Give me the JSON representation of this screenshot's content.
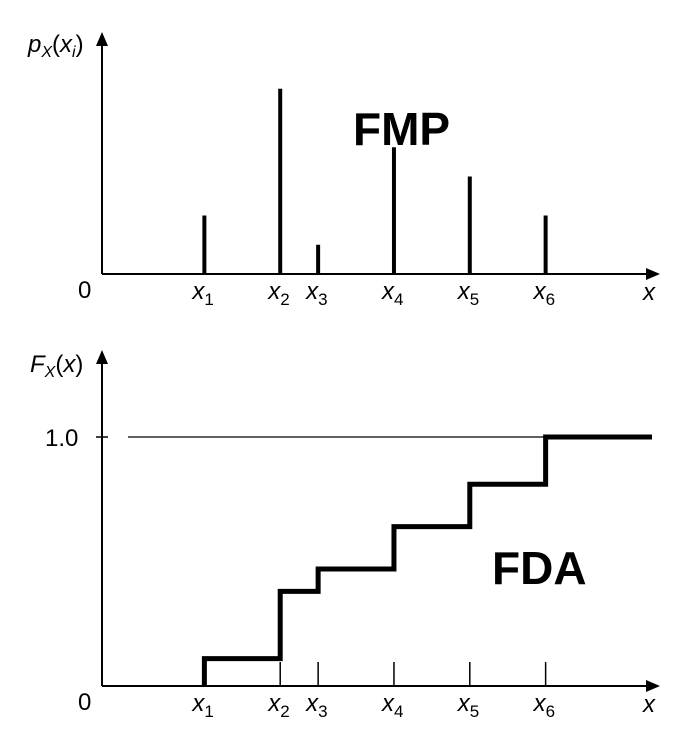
{
  "chart_data": [
    {
      "type": "bar",
      "title": "FMP",
      "ylabel": {
        "main": "p",
        "sub": "X",
        "arg": "x",
        "argsub": "i"
      },
      "xlabel": "x",
      "origin_label": "0",
      "categories": [
        {
          "base": "x",
          "sub": "1"
        },
        {
          "base": "x",
          "sub": "2"
        },
        {
          "base": "x",
          "sub": "3"
        },
        {
          "base": "x",
          "sub": "4"
        },
        {
          "base": "x",
          "sub": "5"
        },
        {
          "base": "x",
          "sub": "6"
        }
      ],
      "x": [
        1.35,
        2.35,
        2.85,
        3.85,
        4.85,
        5.85
      ],
      "values": [
        0.06,
        0.19,
        0.03,
        0.13,
        0.1,
        0.06
      ],
      "xlim": [
        0,
        7.2
      ],
      "ylim": [
        0,
        0.24
      ]
    },
    {
      "type": "line",
      "title": "FDA",
      "ylabel": {
        "main": "F",
        "sub": "X",
        "arg": "x"
      },
      "xlabel": "x",
      "origin_label": "0",
      "categories": [
        {
          "base": "x",
          "sub": "1"
        },
        {
          "base": "x",
          "sub": "2"
        },
        {
          "base": "x",
          "sub": "3"
        },
        {
          "base": "x",
          "sub": "4"
        },
        {
          "base": "x",
          "sub": "5"
        },
        {
          "base": "x",
          "sub": "6"
        }
      ],
      "x": [
        1.35,
        2.35,
        2.85,
        3.85,
        4.85,
        5.85
      ],
      "values": [
        0.11,
        0.38,
        0.47,
        0.64,
        0.81,
        1.0
      ],
      "ytick_label": "1.0",
      "xlim": [
        0,
        7.2
      ],
      "ylim": [
        0,
        1.3
      ]
    }
  ]
}
